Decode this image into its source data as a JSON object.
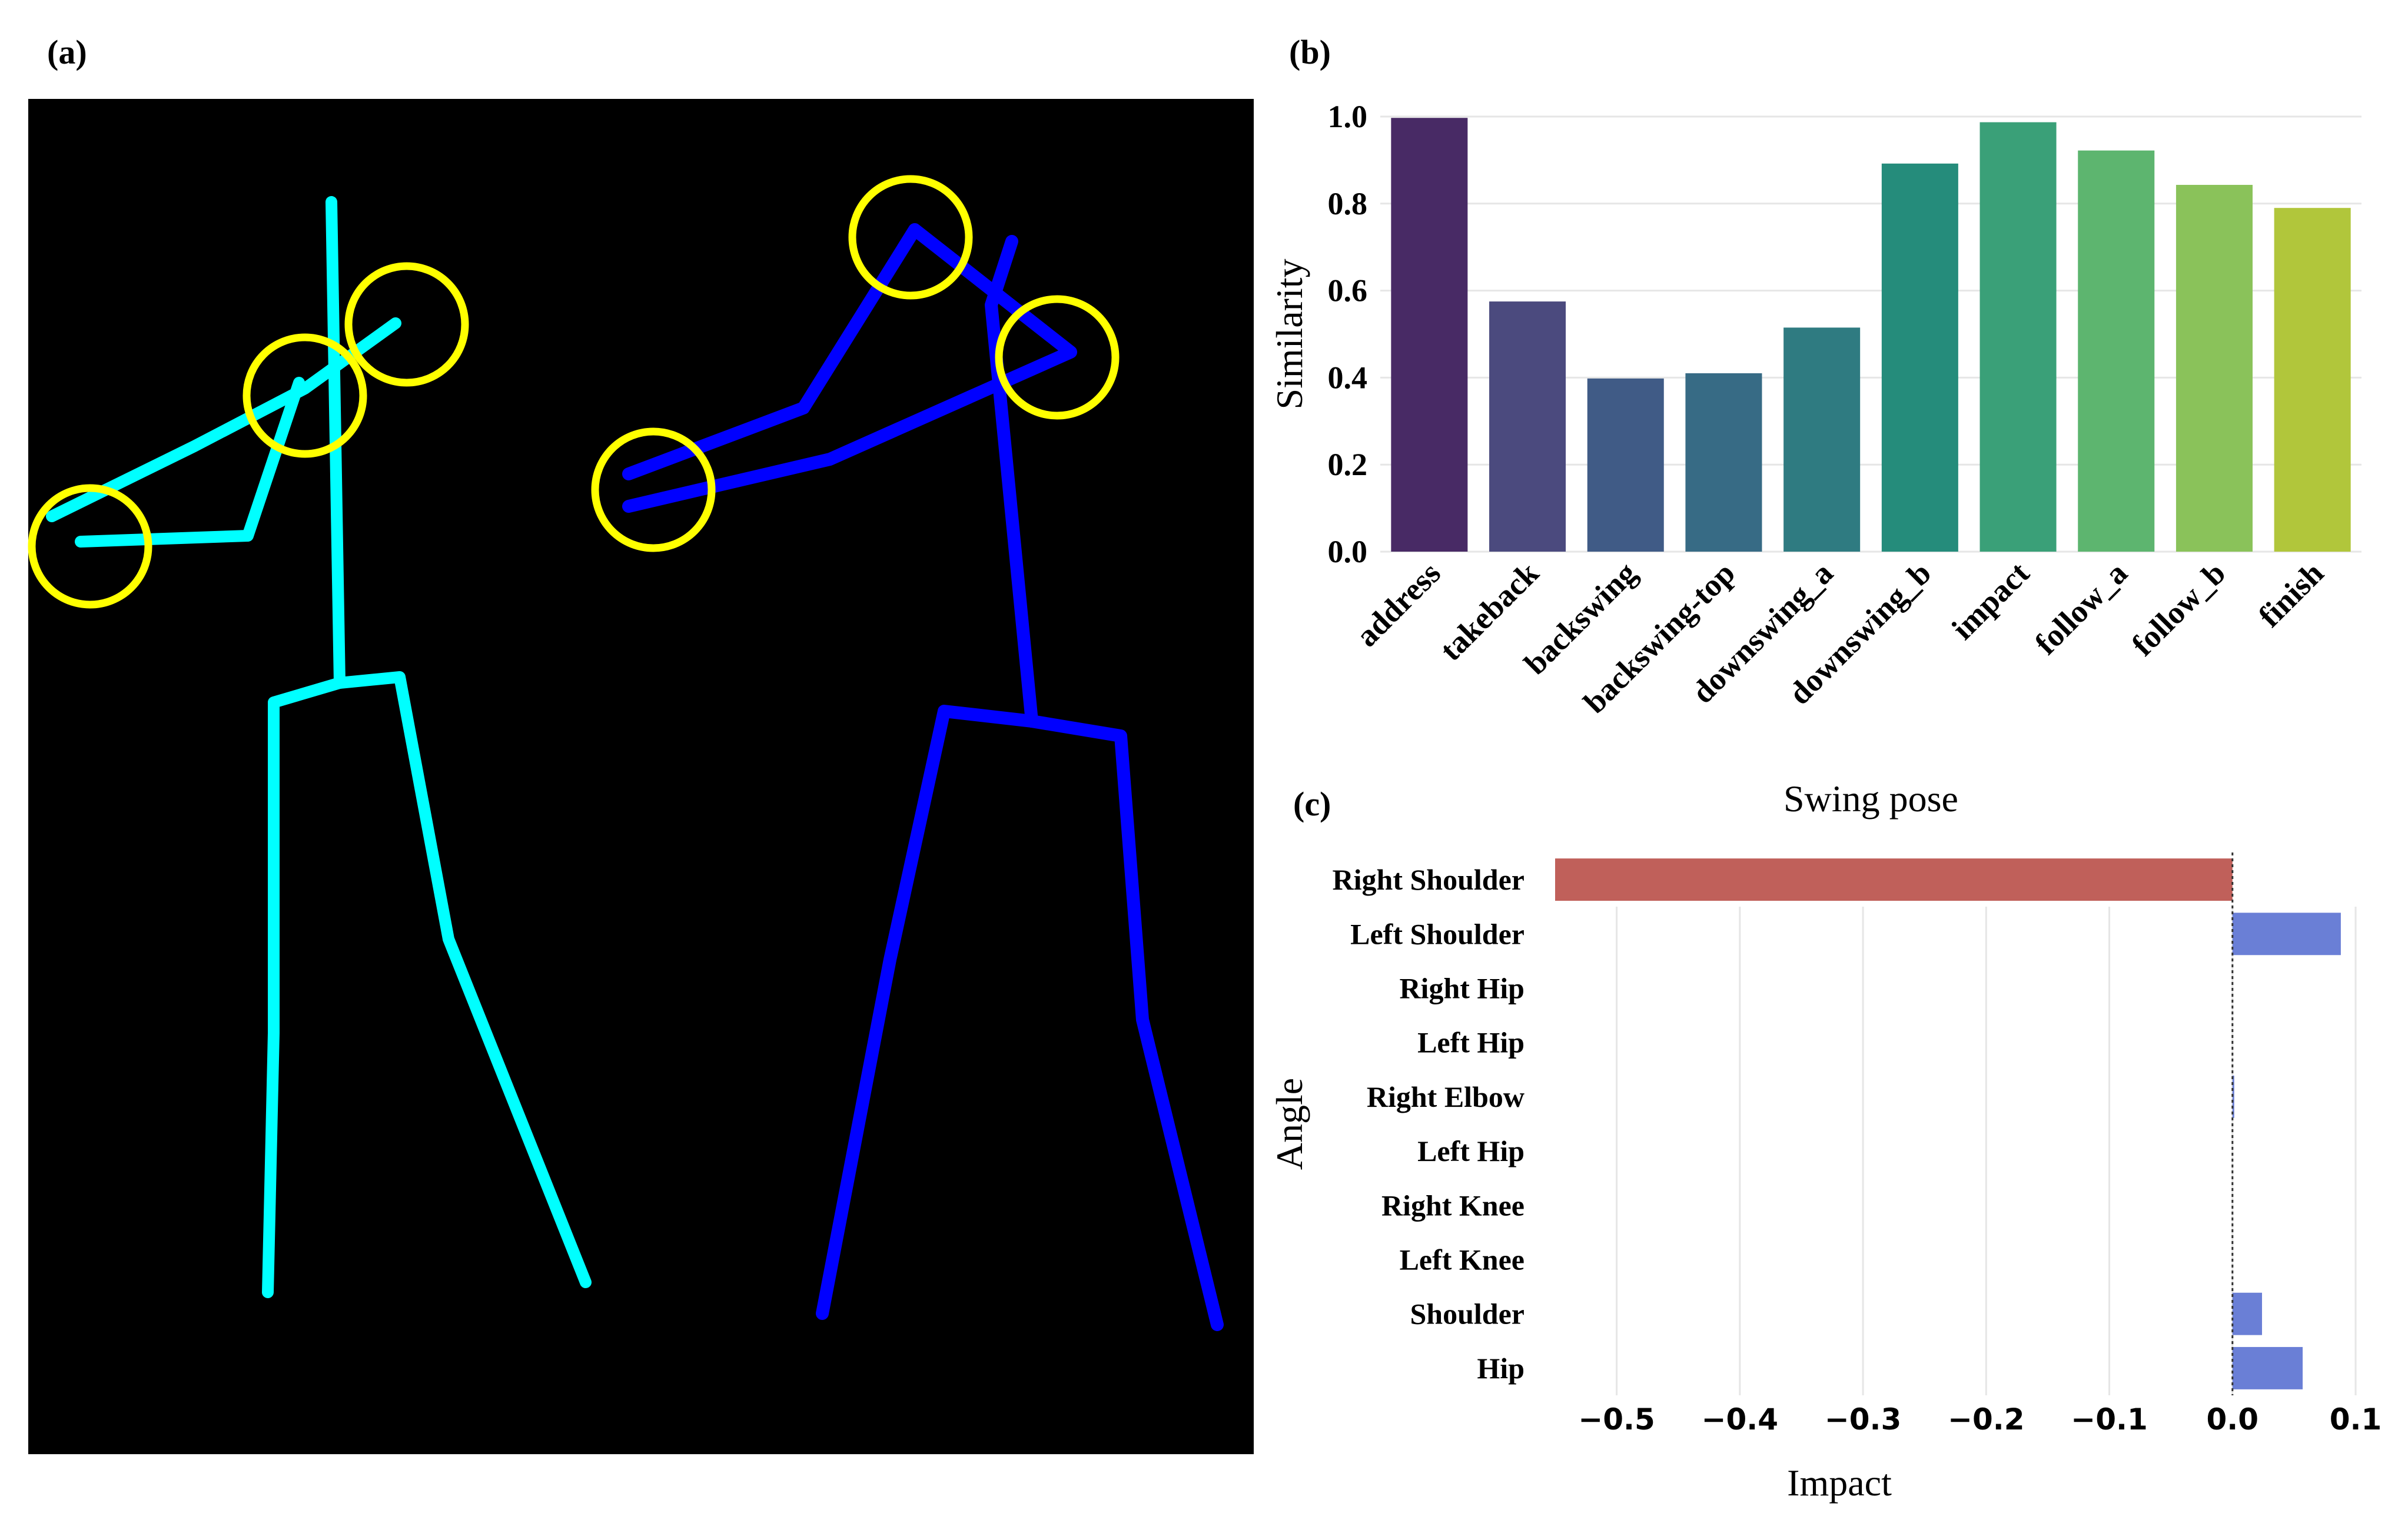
{
  "figure": {
    "panel_labels": {
      "a": "(a)",
      "b": "(b)",
      "c": "(c)"
    }
  },
  "colors": {
    "pose_a": "#00ffff",
    "pose_b": "#0000ff",
    "highlight": "#ffff00",
    "background_a": "#000000",
    "negative_bar": "#c0605a",
    "positive_bar": "#6a7fd6"
  },
  "chart_data": [
    {
      "type": "bar",
      "title": "",
      "xlabel": "Swing pose",
      "ylabel": "Similarity",
      "ylim": [
        0,
        1.0
      ],
      "yticks": [
        "0.0",
        "0.2",
        "0.4",
        "0.6",
        "0.8",
        "1.0"
      ],
      "categories": [
        "address",
        "takeback",
        "backswing",
        "backswing-top",
        "downswing_a",
        "downswing_b",
        "impact",
        "follow_a",
        "follow_b",
        "finish"
      ],
      "values": [
        0.997,
        0.575,
        0.398,
        0.41,
        0.515,
        0.892,
        0.987,
        0.922,
        0.843,
        0.79
      ],
      "colors": [
        "#482a65",
        "#4b4a7e",
        "#405b86",
        "#376b85",
        "#2f7b81",
        "#258c7b",
        "#3aa078",
        "#5db56f",
        "#8ac25a",
        "#b1c63b"
      ],
      "grid": true
    },
    {
      "type": "bar",
      "orientation": "horizontal",
      "title": "",
      "xlabel": "Impact",
      "ylabel": "Angle",
      "xlim": [
        -0.55,
        0.1
      ],
      "xticks": [
        "−0.5",
        "−0.4",
        "−0.3",
        "−0.2",
        "−0.1",
        "0.0",
        "0.1"
      ],
      "categories": [
        "Right Shoulder",
        "Left Shoulder",
        "Right Hip",
        "Left Hip",
        "Right Elbow",
        "Left Hip",
        "Right Knee",
        "Left Knee",
        "Shoulder",
        "Hip"
      ],
      "values": [
        -0.55,
        0.088,
        0.0,
        0.0,
        0.001,
        0.0,
        0.0,
        0.0,
        0.024,
        0.057
      ],
      "grid": true
    }
  ]
}
